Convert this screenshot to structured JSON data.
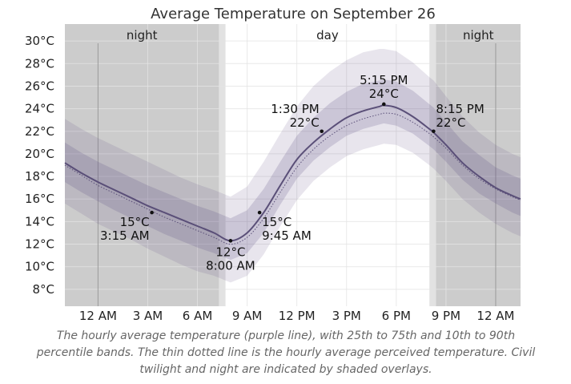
{
  "chart_data": {
    "type": "area",
    "title": "Average Temperature on September 26",
    "x_unit": "hour of day",
    "xlim": [
      -2,
      25.5
    ],
    "ylim": [
      6.5,
      31.5
    ],
    "x_ticks": [
      {
        "value": 0,
        "label": "12 AM"
      },
      {
        "value": 3,
        "label": "3 AM"
      },
      {
        "value": 6,
        "label": "6 AM"
      },
      {
        "value": 9,
        "label": "9 AM"
      },
      {
        "value": 12,
        "label": "12 PM"
      },
      {
        "value": 15,
        "label": "3 PM"
      },
      {
        "value": 18,
        "label": "6 PM"
      },
      {
        "value": 21,
        "label": "9 PM"
      },
      {
        "value": 24,
        "label": "12 AM"
      }
    ],
    "y_ticks": [
      {
        "value": 8,
        "label": "8°C"
      },
      {
        "value": 10,
        "label": "10°C"
      },
      {
        "value": 12,
        "label": "12°C"
      },
      {
        "value": 14,
        "label": "14°C"
      },
      {
        "value": 16,
        "label": "16°C"
      },
      {
        "value": 18,
        "label": "18°C"
      },
      {
        "value": 20,
        "label": "20°C"
      },
      {
        "value": 22,
        "label": "22°C"
      },
      {
        "value": 24,
        "label": "24°C"
      },
      {
        "value": 26,
        "label": "26°C"
      },
      {
        "value": 28,
        "label": "28°C"
      },
      {
        "value": 30,
        "label": "30°C"
      }
    ],
    "regions": [
      {
        "name": "night",
        "from": -2,
        "to": 7.3,
        "shade": "night"
      },
      {
        "name": "",
        "from": 7.3,
        "to": 7.7,
        "shade": "twilight"
      },
      {
        "name": "day",
        "from": 7.7,
        "to": 20.0,
        "shade": "day"
      },
      {
        "name": "",
        "from": 20.0,
        "to": 20.4,
        "shade": "twilight"
      },
      {
        "name": "night",
        "from": 20.4,
        "to": 25.5,
        "shade": "night"
      }
    ],
    "x": [
      -2,
      -1,
      0,
      1,
      2,
      3,
      4,
      5,
      6,
      7,
      8,
      9,
      10,
      11,
      12,
      13,
      14,
      15,
      16,
      17,
      17.25,
      18,
      19,
      20,
      20.25,
      21,
      22,
      23,
      24,
      25,
      25.5
    ],
    "series": [
      {
        "name": "average temperature",
        "role": "average",
        "color": "#5a4f78",
        "values": [
          19.2,
          18.3,
          17.5,
          16.8,
          16.1,
          15.4,
          14.8,
          14.2,
          13.6,
          13.0,
          12.3,
          13.0,
          14.8,
          17.2,
          19.5,
          21.0,
          22.2,
          23.2,
          23.8,
          24.2,
          24.3,
          24.1,
          23.3,
          22.2,
          21.9,
          20.8,
          19.2,
          18.0,
          17.0,
          16.3,
          16.0
        ]
      },
      {
        "name": "perceived temperature",
        "role": "perceived",
        "color": "#5a4f78",
        "values": [
          19.0,
          18.1,
          17.2,
          16.5,
          15.8,
          15.1,
          14.4,
          13.8,
          13.2,
          12.6,
          12.0,
          12.6,
          14.3,
          16.6,
          18.8,
          20.4,
          21.6,
          22.5,
          23.1,
          23.5,
          23.6,
          23.5,
          22.8,
          21.8,
          21.5,
          20.5,
          19.0,
          17.8,
          16.9,
          16.2,
          15.9
        ]
      },
      {
        "name": "10th percentile",
        "role": "p10",
        "color": "#e6e1ec",
        "values": [
          15.6,
          14.7,
          13.8,
          13.1,
          12.4,
          11.6,
          10.9,
          10.2,
          9.6,
          9.2,
          8.6,
          9.2,
          11.1,
          13.6,
          15.9,
          17.6,
          18.8,
          19.8,
          20.4,
          20.8,
          20.9,
          20.8,
          20.1,
          19.0,
          18.7,
          17.6,
          16.0,
          14.8,
          13.8,
          13.0,
          12.7
        ]
      },
      {
        "name": "25th percentile",
        "role": "p25",
        "color": "#cbc3d8",
        "values": [
          17.5,
          16.6,
          15.8,
          15.0,
          14.3,
          13.6,
          12.9,
          12.3,
          11.7,
          11.2,
          10.6,
          11.2,
          13.0,
          15.5,
          17.8,
          19.4,
          20.6,
          21.6,
          22.2,
          22.6,
          22.7,
          22.5,
          21.8,
          20.7,
          20.4,
          19.3,
          17.7,
          16.5,
          15.6,
          14.8,
          14.5
        ]
      },
      {
        "name": "75th percentile",
        "role": "p75",
        "color": "#cbc3d8",
        "values": [
          21.0,
          20.1,
          19.3,
          18.6,
          17.9,
          17.2,
          16.6,
          16.0,
          15.4,
          14.9,
          14.3,
          15.0,
          16.9,
          19.3,
          21.6,
          23.2,
          24.5,
          25.5,
          26.2,
          26.5,
          26.6,
          26.4,
          25.6,
          24.4,
          24.1,
          22.8,
          21.1,
          19.9,
          18.8,
          18.1,
          17.8
        ]
      },
      {
        "name": "90th percentile",
        "role": "p90",
        "color": "#e6e1ec",
        "values": [
          23.1,
          22.2,
          21.4,
          20.7,
          20.0,
          19.3,
          18.6,
          17.9,
          17.3,
          16.8,
          16.2,
          17.1,
          19.3,
          21.8,
          24.2,
          26.0,
          27.3,
          28.3,
          29.0,
          29.3,
          29.3,
          29.1,
          28.1,
          26.8,
          26.5,
          25.1,
          23.3,
          21.9,
          20.8,
          20.0,
          19.7
        ]
      }
    ],
    "annotations": [
      {
        "x": 3.25,
        "y": 14.8,
        "temp": "15°C",
        "time": "3:15 AM",
        "place": "below-left"
      },
      {
        "x": 8.0,
        "y": 12.3,
        "temp": "12°C",
        "time": "8:00 AM",
        "place": "below"
      },
      {
        "x": 9.75,
        "y": 14.8,
        "temp": "15°C",
        "time": "9:45 AM",
        "place": "below-right"
      },
      {
        "x": 13.5,
        "y": 22.0,
        "temp": "22°C",
        "time": "1:30 PM",
        "place": "above-left"
      },
      {
        "x": 17.25,
        "y": 24.4,
        "temp": "24°C",
        "time": "5:15 PM",
        "place": "above"
      },
      {
        "x": 20.25,
        "y": 22.0,
        "temp": "22°C",
        "time": "8:15 PM",
        "place": "above-right"
      }
    ],
    "grid": true,
    "legend": "none"
  },
  "caption": "The hourly average temperature (purple line), with 25th to 75th and 10th to 90th percentile bands. The thin dotted line is the hourly average perceived temperature. Civil twilight and night are indicated by shaded overlays.",
  "colors": {
    "night": "#cccccc",
    "twilight": "#e2e2e2",
    "day": "#ffffff",
    "grid": "#e3e3e3",
    "midnight_line": "#9a9a9a"
  }
}
